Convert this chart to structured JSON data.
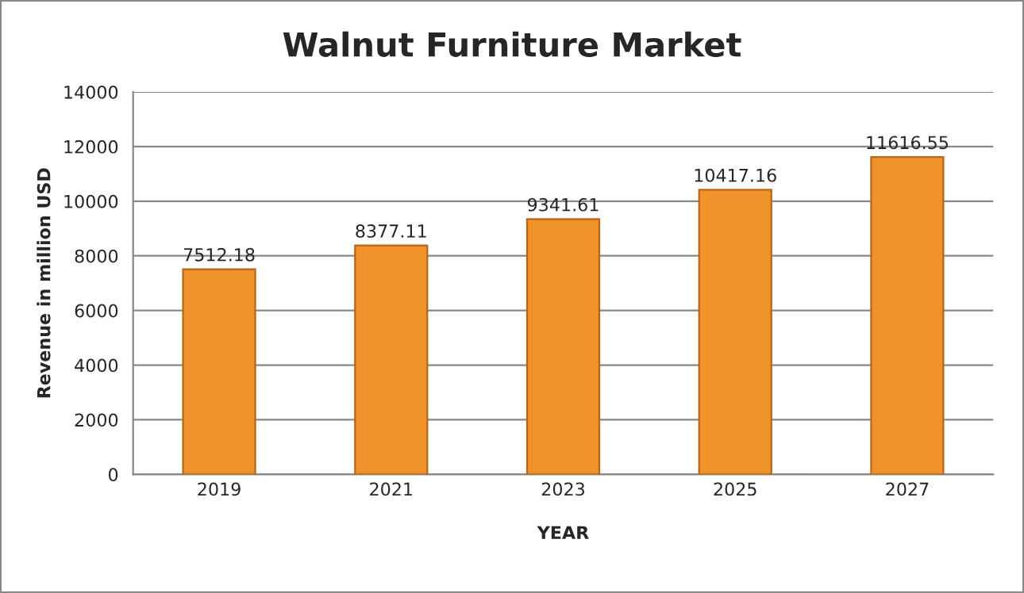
{
  "chart_data": {
    "type": "bar",
    "title": "Walnut Furniture Market",
    "xlabel": "YEAR",
    "ylabel": "Revenue in million USD",
    "categories": [
      "2019",
      "2021",
      "2023",
      "2025",
      "2027"
    ],
    "values": [
      7512.18,
      8377.11,
      9341.61,
      10417.16,
      11616.55
    ],
    "color": "#f0922b",
    "ylim": [
      0,
      14000
    ],
    "yticks": [
      0,
      2000,
      4000,
      6000,
      8000,
      10000,
      12000,
      14000
    ],
    "grid": "y",
    "data_labels": true,
    "legend": false
  }
}
